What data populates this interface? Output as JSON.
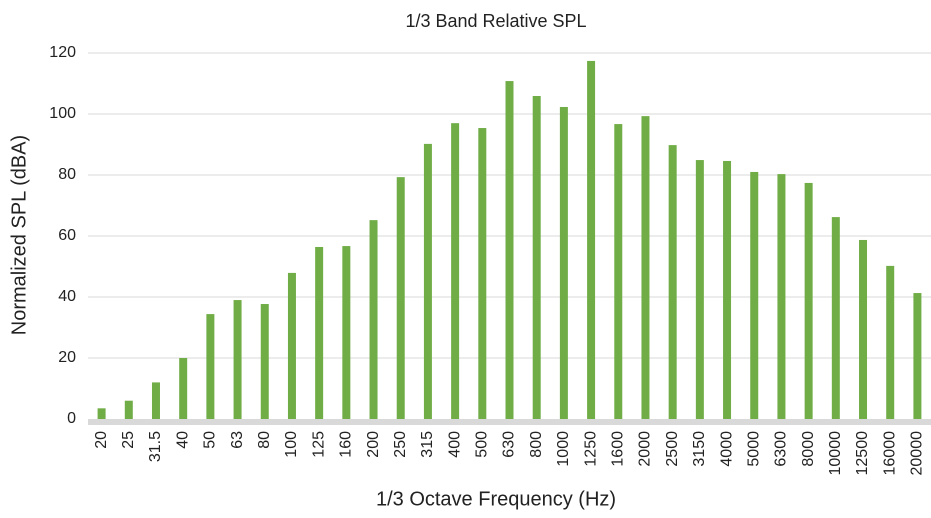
{
  "chart_data": {
    "type": "bar",
    "title": "1/3 Band Relative SPL",
    "x_label": "1/3 Octave Frequency (Hz)",
    "y_label": "Normalized SPL (dBA)",
    "categories": [
      "20",
      "25",
      "31.5",
      "40",
      "50",
      "63",
      "80",
      "100",
      "125",
      "160",
      "200",
      "250",
      "315",
      "400",
      "500",
      "630",
      "800",
      "1000",
      "1250",
      "1600",
      "2000",
      "2500",
      "3150",
      "4000",
      "5000",
      "6300",
      "8000",
      "10000",
      "12500",
      "16000",
      "20000"
    ],
    "values": [
      3.5,
      6,
      12,
      20,
      34.4,
      39,
      37.7,
      47.9,
      56.4,
      56.7,
      65.2,
      79.3,
      90.2,
      97,
      95.4,
      110.8,
      105.9,
      102.3,
      117.4,
      96.7,
      99.3,
      89.8,
      84.9,
      84.6,
      81,
      80.3,
      77.4,
      66.2,
      58.7,
      50.2,
      41.3
    ],
    "color": "#70ad47",
    "ylim": [
      0,
      120
    ],
    "yticks": [
      0,
      20,
      40,
      60,
      80,
      100,
      120
    ],
    "grid": true
  }
}
